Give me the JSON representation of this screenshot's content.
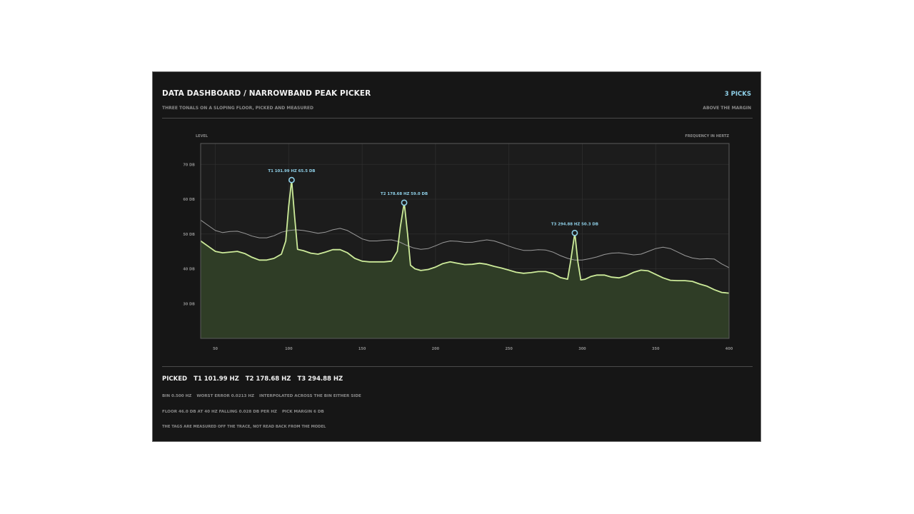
{
  "header": {
    "title": "DATA DASHBOARD / NARROWBAND PEAK PICKER",
    "subtitle": "THREE TONALS ON A SLOPING FLOOR, PICKED AND MEASURED",
    "picks_count": "3 PICKS",
    "margin_note": "ABOVE THE MARGIN"
  },
  "footer": {
    "picked_label": "PICKED",
    "picks": [
      "T1 101.99 HZ",
      "T2 178.68 HZ",
      "T3 294.88 HZ"
    ],
    "line1": [
      "BIN 0.500 HZ",
      "WORST ERROR 0.0213 HZ",
      "INTERPOLATED ACROSS THE BIN EITHER SIDE"
    ],
    "line2": [
      "FLOOR 46.0 DB AT 40 HZ FALLING 0.028 DB PER HZ",
      "PICK MARGIN 6 DB"
    ],
    "line3": "THE TAGS ARE MEASURED OFF THE TRACE, NOT READ BACK FROM THE MODEL"
  },
  "chart_data": {
    "type": "line",
    "ylabel": "LEVEL",
    "xlabel": "FREQUENCY IN HERTZ",
    "xlim": [
      40,
      400
    ],
    "ylim": [
      20,
      76
    ],
    "x_ticks": [
      50,
      100,
      150,
      200,
      250,
      300,
      350,
      400
    ],
    "y_ticks": [
      30,
      40,
      50,
      60,
      70
    ],
    "y_tick_labels": [
      "30 DB",
      "40 DB",
      "50 DB",
      "60 DB",
      "70 DB"
    ],
    "grid": true,
    "colors": {
      "trace": "#cdeb9a",
      "fill": "#2f3d26",
      "threshold": "#9a9a9a",
      "marker": "#8fd0e8",
      "grid": "#2e2e2e"
    },
    "series": [
      {
        "role": "spectrum",
        "x": [
          40,
          45,
          50,
          55,
          60,
          65,
          70,
          75,
          80,
          85,
          90,
          95,
          98,
          100,
          102,
          104,
          106,
          110,
          115,
          120,
          125,
          130,
          135,
          140,
          145,
          150,
          155,
          160,
          165,
          170,
          174,
          176,
          178.7,
          181,
          183,
          186,
          190,
          195,
          200,
          205,
          210,
          215,
          220,
          225,
          230,
          235,
          240,
          245,
          250,
          255,
          260,
          265,
          270,
          275,
          280,
          285,
          290,
          292,
          294.9,
          297,
          299,
          302,
          306,
          310,
          315,
          320,
          325,
          330,
          335,
          340,
          345,
          350,
          355,
          360,
          365,
          370,
          375,
          380,
          385,
          390,
          395,
          400
        ],
        "values": [
          48.0,
          46.5,
          45.0,
          44.6,
          44.8,
          45.0,
          44.4,
          43.3,
          42.5,
          42.5,
          43.0,
          44.2,
          48.0,
          58.0,
          65.5,
          55.0,
          45.6,
          45.2,
          44.5,
          44.2,
          44.8,
          45.5,
          45.5,
          44.6,
          43.0,
          42.2,
          42.0,
          42.0,
          42.0,
          42.2,
          45.0,
          52.0,
          59.0,
          50.0,
          41.0,
          40.0,
          39.5,
          39.8,
          40.5,
          41.5,
          42.0,
          41.6,
          41.2,
          41.3,
          41.6,
          41.3,
          40.7,
          40.2,
          39.6,
          39.0,
          38.7,
          38.9,
          39.2,
          39.2,
          38.6,
          37.5,
          37.0,
          42.0,
          50.3,
          42.0,
          36.8,
          37.0,
          37.8,
          38.2,
          38.2,
          37.6,
          37.4,
          38.0,
          39.0,
          39.6,
          39.4,
          38.4,
          37.4,
          36.7,
          36.6,
          36.6,
          36.4,
          35.6,
          35.0,
          34.0,
          33.2,
          33.0
        ]
      },
      {
        "role": "pick-threshold",
        "x": [
          40,
          45,
          50,
          55,
          60,
          65,
          70,
          75,
          80,
          85,
          90,
          95,
          100,
          105,
          110,
          115,
          120,
          125,
          130,
          135,
          140,
          145,
          150,
          155,
          160,
          165,
          170,
          175,
          180,
          185,
          190,
          195,
          200,
          205,
          210,
          215,
          220,
          225,
          230,
          235,
          240,
          245,
          250,
          255,
          260,
          265,
          270,
          275,
          280,
          285,
          290,
          295,
          300,
          305,
          310,
          315,
          320,
          325,
          330,
          335,
          340,
          345,
          350,
          355,
          360,
          365,
          370,
          375,
          380,
          385,
          390,
          395,
          400
        ],
        "values": [
          54.0,
          52.5,
          51.0,
          50.4,
          50.7,
          50.8,
          50.2,
          49.4,
          48.9,
          48.9,
          49.5,
          50.5,
          51.0,
          51.2,
          51.0,
          50.6,
          50.2,
          50.5,
          51.2,
          51.6,
          51.0,
          49.8,
          48.6,
          48.0,
          48.0,
          48.2,
          48.3,
          47.8,
          46.8,
          46.0,
          45.6,
          45.8,
          46.6,
          47.5,
          48.0,
          47.9,
          47.6,
          47.6,
          48.0,
          48.3,
          48.0,
          47.3,
          46.5,
          45.8,
          45.3,
          45.3,
          45.5,
          45.4,
          44.8,
          43.8,
          43.0,
          42.5,
          42.5,
          42.9,
          43.4,
          44.1,
          44.5,
          44.6,
          44.3,
          44.0,
          44.2,
          45.0,
          45.8,
          46.2,
          45.8,
          44.8,
          43.8,
          43.1,
          42.8,
          42.9,
          42.8,
          41.4,
          40.3
        ]
      }
    ],
    "peaks": [
      {
        "x": 101.99,
        "y": 65.5,
        "label": "T1  101.99 HZ  65.5 DB"
      },
      {
        "x": 178.68,
        "y": 59.0,
        "label": "T2  178.68 HZ  59.0 DB"
      },
      {
        "x": 294.88,
        "y": 50.3,
        "label": "T3  294.88 HZ  50.3 DB"
      }
    ]
  }
}
